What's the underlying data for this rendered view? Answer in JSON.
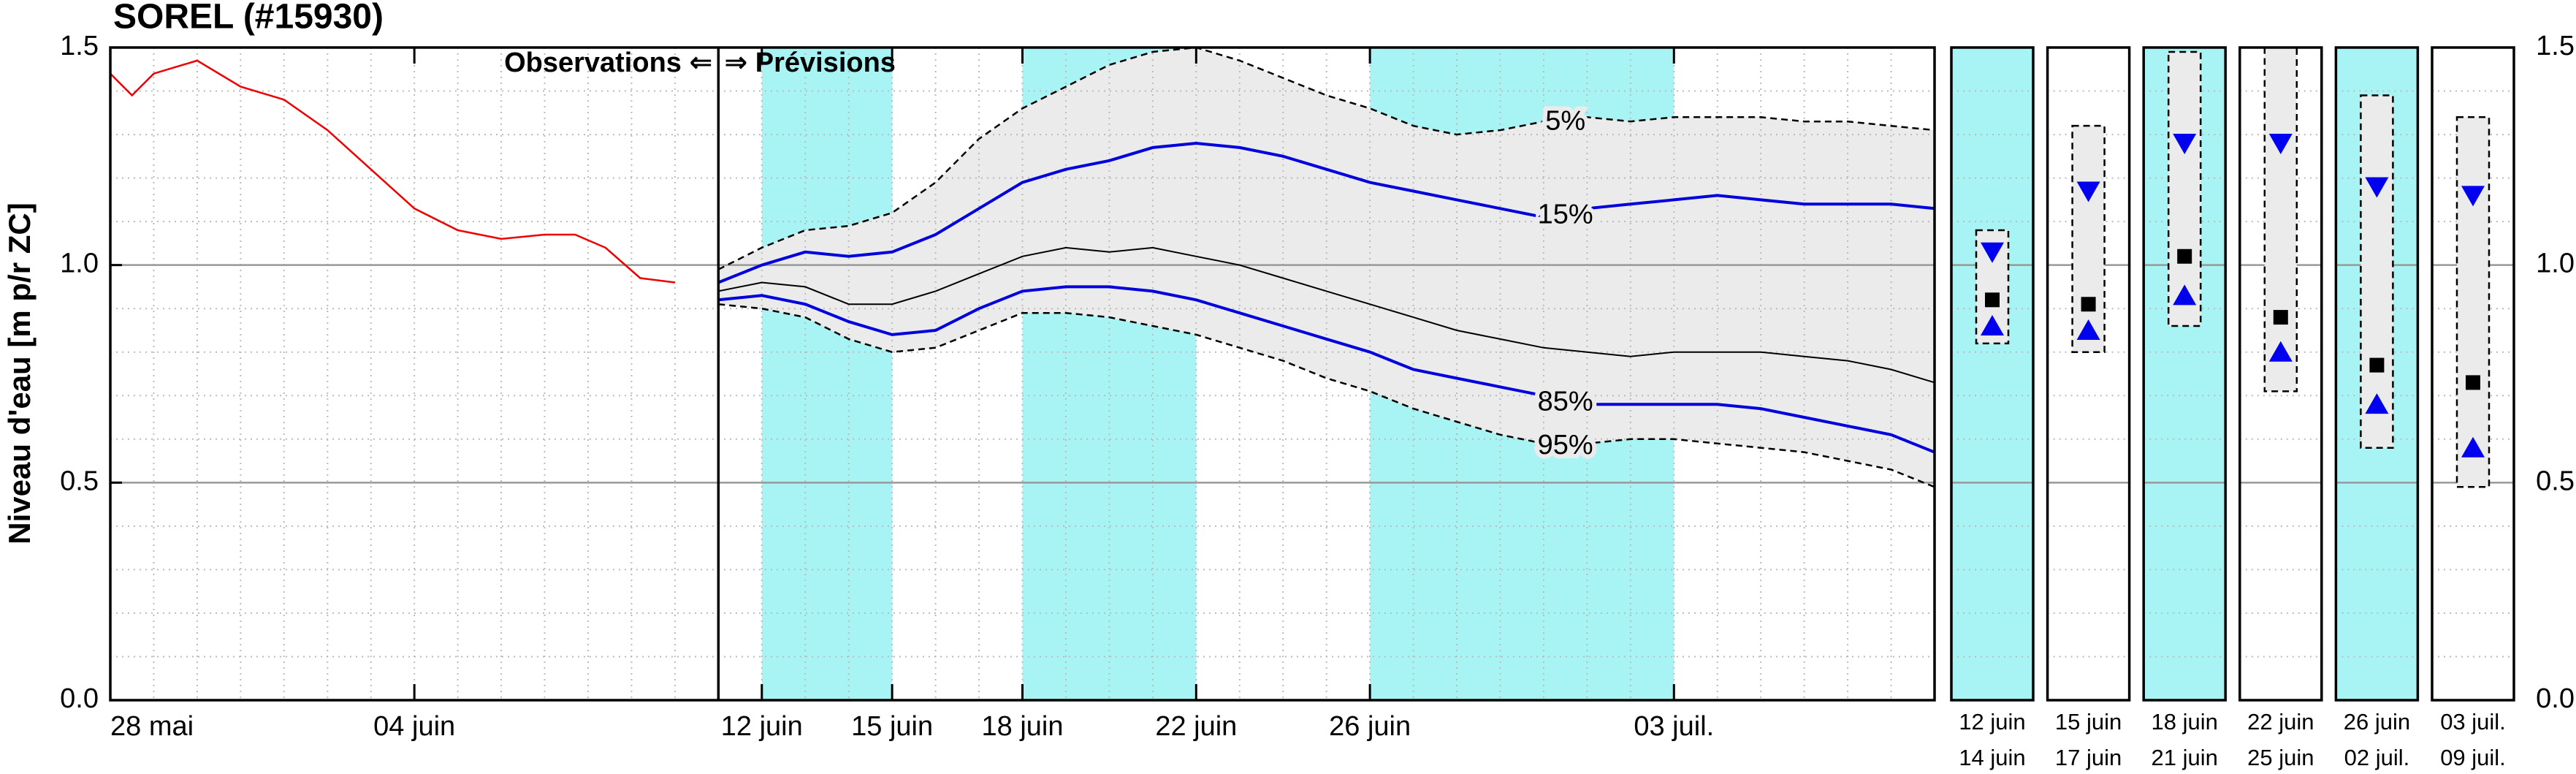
{
  "chart_data": {
    "type": "line",
    "title": "SOREL (#15930)",
    "ylabel": "Niveau d'eau [m p/r ZC]",
    "annotations": [
      "Observations ⇐",
      "⇒ Prévisions"
    ],
    "xlim": [
      0,
      42
    ],
    "xticks": [
      {
        "value": 0,
        "label": "28 mai"
      },
      {
        "value": 7,
        "label": "04 juin"
      },
      {
        "value": 15,
        "label": "12 juin"
      },
      {
        "value": 18,
        "label": "15 juin"
      },
      {
        "value": 21,
        "label": "18 juin"
      },
      {
        "value": 25,
        "label": "22 juin"
      },
      {
        "value": 29,
        "label": "26 juin"
      },
      {
        "value": 36,
        "label": "03 juil."
      }
    ],
    "ylim": [
      0,
      1.5
    ],
    "yticks": [
      {
        "value": 0,
        "label": "0.0"
      },
      0.5,
      {
        "value": 1,
        "label": "1.0"
      },
      1.5
    ],
    "y2lim": [
      0,
      1.5
    ],
    "y2ticks": [
      {
        "value": 0,
        "label": "0.0"
      },
      0.5,
      {
        "value": 1,
        "label": "1.0"
      },
      1.5
    ],
    "grid": true,
    "major_grid_color": "#999999",
    "minor_grid": {
      "x": 1,
      "y": 0.1
    },
    "shaded_periods": [
      [
        15,
        18
      ],
      [
        21,
        25
      ],
      [
        29,
        36
      ]
    ],
    "shade_color": "#a8f4f4",
    "observed": {
      "color": "#ee0000",
      "x": [
        0,
        0.5,
        1,
        2,
        3,
        4,
        5,
        6,
        7,
        8,
        9,
        10,
        10.7,
        11.4,
        12.2,
        13
      ],
      "values": [
        1.44,
        1.39,
        1.44,
        1.47,
        1.41,
        1.38,
        1.31,
        1.22,
        1.13,
        1.08,
        1.06,
        1.07,
        1.07,
        1.04,
        0.97,
        0.96
      ]
    },
    "forecast": {
      "band_color": "#ebebeb",
      "x": [
        14,
        15,
        16,
        17,
        18,
        19,
        20,
        21,
        22,
        23,
        24,
        25,
        26,
        27,
        28,
        29,
        30,
        31,
        32,
        33,
        34,
        35,
        36,
        37,
        38,
        39,
        40,
        41,
        42
      ],
      "series": [
        {
          "name": "5%",
          "color": "#000000",
          "dashed": true,
          "marker": "box-top",
          "values": [
            0.99,
            1.04,
            1.08,
            1.09,
            1.12,
            1.19,
            1.29,
            1.36,
            1.41,
            1.46,
            1.49,
            1.5,
            1.47,
            1.43,
            1.39,
            1.36,
            1.32,
            1.3,
            1.31,
            1.33,
            1.34,
            1.33,
            1.34,
            1.34,
            1.34,
            1.33,
            1.33,
            1.32,
            1.31
          ]
        },
        {
          "name": "15%",
          "color": "#0000dd",
          "dashed": false,
          "marker": "triangle-down",
          "values": [
            0.96,
            1.0,
            1.03,
            1.02,
            1.03,
            1.07,
            1.13,
            1.19,
            1.22,
            1.24,
            1.27,
            1.28,
            1.27,
            1.25,
            1.22,
            1.19,
            1.17,
            1.15,
            1.13,
            1.11,
            1.13,
            1.14,
            1.15,
            1.16,
            1.15,
            1.14,
            1.14,
            1.14,
            1.13
          ]
        },
        {
          "color": "#000000",
          "dashed": false,
          "marker": "square",
          "values": [
            0.94,
            0.96,
            0.95,
            0.91,
            0.91,
            0.94,
            0.98,
            1.02,
            1.04,
            1.03,
            1.04,
            1.02,
            1.0,
            0.97,
            0.94,
            0.91,
            0.88,
            0.85,
            0.83,
            0.81,
            0.8,
            0.79,
            0.8,
            0.8,
            0.8,
            0.79,
            0.78,
            0.76,
            0.73
          ]
        },
        {
          "name": "85%",
          "color": "#0000dd",
          "dashed": false,
          "marker": "triangle-up",
          "values": [
            0.92,
            0.93,
            0.91,
            0.87,
            0.84,
            0.85,
            0.9,
            0.94,
            0.95,
            0.95,
            0.94,
            0.92,
            0.89,
            0.86,
            0.83,
            0.8,
            0.76,
            0.74,
            0.72,
            0.7,
            0.68,
            0.68,
            0.68,
            0.68,
            0.67,
            0.65,
            0.63,
            0.61,
            0.57
          ]
        },
        {
          "name": "95%",
          "color": "#000000",
          "dashed": true,
          "marker": "box-bottom",
          "values": [
            0.91,
            0.9,
            0.88,
            0.83,
            0.8,
            0.81,
            0.85,
            0.89,
            0.89,
            0.88,
            0.86,
            0.84,
            0.81,
            0.78,
            0.74,
            0.71,
            0.67,
            0.64,
            0.61,
            0.59,
            0.59,
            0.6,
            0.6,
            0.59,
            0.58,
            0.57,
            0.55,
            0.53,
            0.49
          ]
        }
      ]
    },
    "panels": [
      {
        "from": "12 juin",
        "to": "14 juin",
        "shaded": true,
        "values": [
          1.08,
          1.03,
          0.92,
          0.86,
          0.82
        ]
      },
      {
        "from": "15 juin",
        "to": "17 juin",
        "shaded": false,
        "values": [
          1.32,
          1.17,
          0.91,
          0.85,
          0.8
        ]
      },
      {
        "from": "18 juin",
        "to": "21 juin",
        "shaded": true,
        "values": [
          1.49,
          1.28,
          1.02,
          0.93,
          0.86
        ]
      },
      {
        "from": "22 juin",
        "to": "25 juin",
        "shaded": false,
        "values": [
          1.5,
          1.28,
          0.88,
          0.8,
          0.71
        ]
      },
      {
        "from": "26 juin",
        "to": "02 juil.",
        "shaded": true,
        "values": [
          1.39,
          1.18,
          0.77,
          0.68,
          0.58
        ]
      },
      {
        "from": "03 juil.",
        "to": "09 juil.",
        "shaded": false,
        "values": [
          1.34,
          1.16,
          0.73,
          0.58,
          0.49
        ]
      }
    ]
  }
}
